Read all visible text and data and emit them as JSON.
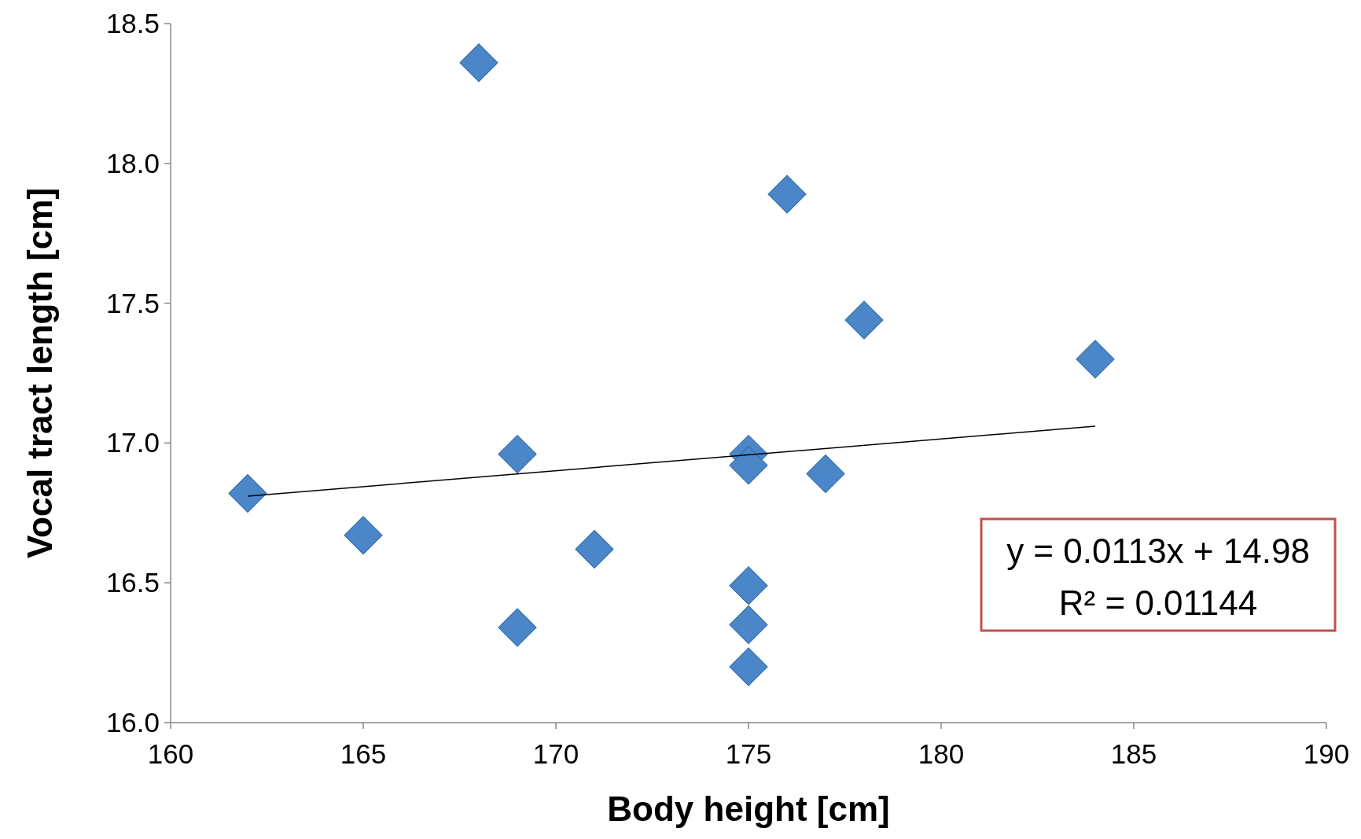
{
  "chart_data": {
    "type": "scatter",
    "xlabel": "Body height [cm]",
    "ylabel": "Vocal tract length [cm]",
    "x": [
      168,
      176,
      178,
      184,
      175,
      175,
      177,
      169,
      162,
      165,
      171,
      175,
      169,
      175,
      175
    ],
    "series": [
      {
        "color": "#4a86c8",
        "marker": "diamond",
        "values": [
          18.36,
          17.89,
          17.44,
          17.3,
          16.96,
          16.92,
          16.89,
          16.96,
          16.82,
          16.67,
          16.62,
          16.49,
          16.34,
          16.35,
          16.2
        ]
      },
      {
        "type": "line",
        "color": "#000000",
        "x": [
          162,
          184
        ],
        "values": [
          16.81,
          17.06
        ]
      }
    ],
    "xlim": [
      160,
      190
    ],
    "xticks": [
      160,
      165,
      170,
      175,
      180,
      185,
      190
    ],
    "ylim": [
      16,
      18.5
    ],
    "yticks": [
      {
        "value": 16,
        "label": "16.0"
      },
      {
        "value": 16.5,
        "label": "16.5"
      },
      {
        "value": 17,
        "label": "17.0"
      },
      {
        "value": 17.5,
        "label": "17.5"
      },
      {
        "value": 18,
        "label": "18.0"
      },
      {
        "value": 18.5,
        "label": "18.5"
      }
    ],
    "annotations": [
      "y = 0.0113x + 14.98",
      "R² = 0.01144"
    ],
    "grid": false
  }
}
